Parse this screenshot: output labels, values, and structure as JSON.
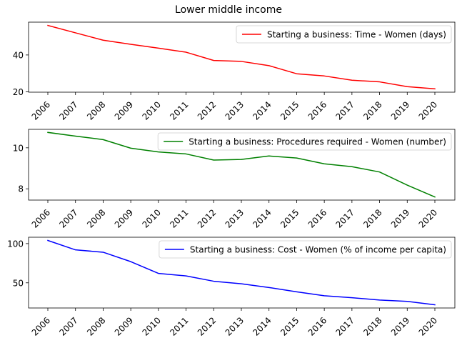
{
  "chart_data": {
    "type": "line",
    "title": "Lower middle income",
    "x": [
      "2006",
      "2007",
      "2008",
      "2009",
      "2010",
      "2011",
      "2012",
      "2013",
      "2014",
      "2015",
      "2016",
      "2017",
      "2018",
      "2019",
      "2020"
    ],
    "panels": [
      {
        "series": [
          {
            "name": "Starting a business: Time - Women (days)",
            "color": "#ff0000",
            "values": [
              56,
              52,
              48,
              45.8,
              43.7,
              41.5,
              37,
              36.5,
              34.2,
              29.8,
              28.6,
              26.3,
              25.4,
              22.8,
              21.6
            ]
          }
        ],
        "ylim": [
          19.8,
          57.8
        ],
        "yticks": [
          20,
          40
        ],
        "legend": "upper right"
      },
      {
        "series": [
          {
            "name": "Starting a business: Procedures required - Women (number)",
            "color": "#008000",
            "values": [
              10.75,
              10.57,
              10.4,
              9.98,
              9.8,
              9.7,
              9.4,
              9.43,
              9.6,
              9.5,
              9.22,
              9.08,
              8.82,
              8.18,
              7.6
            ]
          }
        ],
        "ylim": [
          7.45,
          10.9
        ],
        "yticks": [
          8,
          10
        ],
        "legend": "upper right"
      },
      {
        "series": [
          {
            "name": "Starting a business: Cost - Women (% of income per capita)",
            "color": "#0000ff",
            "values": [
              104,
              92,
              89,
              77,
              62,
              58.8,
              52,
              48.8,
              44,
              38.5,
              33.5,
              31,
              28,
              26.3,
              22
            ]
          }
        ],
        "ylim": [
          17.9,
          108.1
        ],
        "yticks": [
          50,
          100
        ],
        "legend": "upper right"
      }
    ]
  }
}
